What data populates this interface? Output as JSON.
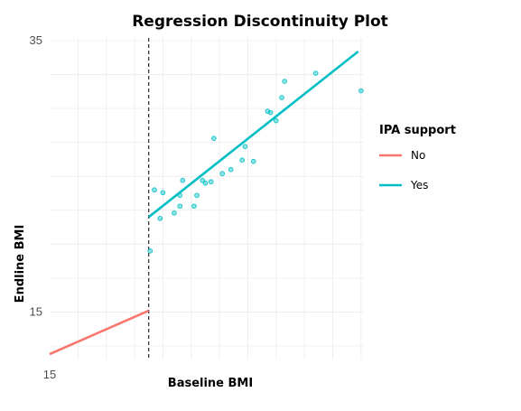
{
  "chart_data": {
    "type": "scatter",
    "title": "Regression Discontinuity Plot",
    "xlabel": "Baseline BMI",
    "ylabel": "Endline BMI",
    "xlim": [
      15,
      26.1
    ],
    "ylim": [
      11.5,
      35.2
    ],
    "x_ticks": [
      {
        "value": 15,
        "label": "15"
      }
    ],
    "y_ticks": [
      {
        "value": 15,
        "label": "15"
      },
      {
        "value": 35,
        "label": "35"
      }
    ],
    "grid": true,
    "cutoff": 18.5,
    "legend": {
      "title": "IPA support",
      "position": "right",
      "entries": [
        {
          "label": "No",
          "color": "#F8766D"
        },
        {
          "label": "Yes",
          "color": "#00BFC4"
        }
      ]
    },
    "series": [
      {
        "name": "No",
        "color": "#F8766D",
        "kind": "line",
        "points": [
          [
            15,
            11.9
          ],
          [
            18.5,
            15.1
          ]
        ]
      },
      {
        "name": "Yes",
        "color": "#00BFC4",
        "kind": "line",
        "points": [
          [
            18.5,
            22.0
          ],
          [
            25.9,
            34.2
          ]
        ]
      },
      {
        "name": "Yes",
        "color": "#00BFC4",
        "kind": "scatter",
        "points": [
          [
            18.55,
            19.5
          ],
          [
            18.7,
            24.0
          ],
          [
            18.9,
            21.9
          ],
          [
            19.0,
            23.8
          ],
          [
            19.4,
            22.3
          ],
          [
            19.6,
            22.8
          ],
          [
            19.6,
            23.6
          ],
          [
            19.7,
            24.7
          ],
          [
            20.1,
            22.8
          ],
          [
            20.2,
            23.6
          ],
          [
            20.4,
            24.7
          ],
          [
            20.5,
            24.5
          ],
          [
            20.7,
            24.6
          ],
          [
            20.8,
            27.8
          ],
          [
            21.1,
            25.2
          ],
          [
            21.4,
            25.5
          ],
          [
            21.8,
            26.2
          ],
          [
            21.9,
            27.2
          ],
          [
            22.2,
            26.1
          ],
          [
            22.7,
            29.8
          ],
          [
            22.8,
            29.7
          ],
          [
            23.0,
            29.1
          ],
          [
            23.2,
            30.8
          ],
          [
            23.3,
            32.0
          ],
          [
            24.4,
            32.6
          ],
          [
            26.0,
            31.3
          ]
        ]
      }
    ]
  }
}
